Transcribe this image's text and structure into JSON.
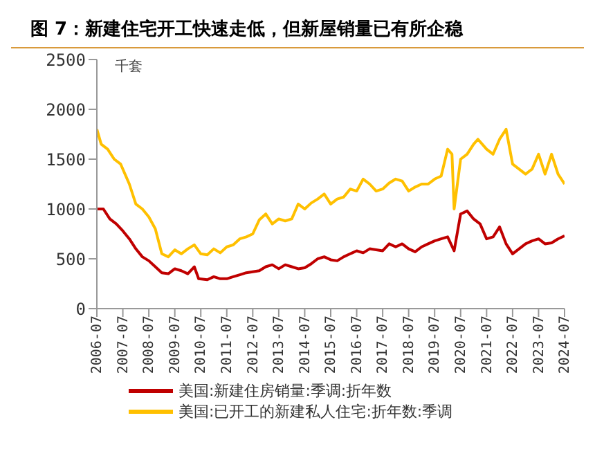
{
  "chart_data": {
    "type": "line",
    "title": "图 7：新建住宅开工快速走低，但新屋销量已有所企稳",
    "ylabel": "千套",
    "x": [
      "2006-07",
      "2006-10",
      "2007-01",
      "2007-04",
      "2007-07",
      "2007-10",
      "2008-01",
      "2008-04",
      "2008-07",
      "2008-10",
      "2009-01",
      "2009-04",
      "2009-07",
      "2009-10",
      "2010-01",
      "2010-04",
      "2010-06",
      "2010-10",
      "2011-01",
      "2011-04",
      "2011-07",
      "2011-10",
      "2012-01",
      "2012-04",
      "2012-07",
      "2012-10",
      "2013-01",
      "2013-04",
      "2013-07",
      "2013-10",
      "2014-01",
      "2014-04",
      "2014-07",
      "2014-10",
      "2015-01",
      "2015-04",
      "2015-07",
      "2015-10",
      "2016-01",
      "2016-04",
      "2016-07",
      "2016-10",
      "2017-01",
      "2017-04",
      "2017-07",
      "2017-10",
      "2018-01",
      "2018-04",
      "2018-07",
      "2018-10",
      "2019-01",
      "2019-04",
      "2019-07",
      "2019-10",
      "2020-01",
      "2020-04",
      "2020-07",
      "2020-10",
      "2021-01",
      "2021-04",
      "2021-07",
      "2021-10",
      "2022-01",
      "2022-04",
      "2022-07",
      "2022-10",
      "2023-01",
      "2023-04",
      "2023-07",
      "2023-10",
      "2024-01",
      "2024-04",
      "2024-07"
    ],
    "series": [
      {
        "name": "美国:新建住房销量:季调:折年数",
        "color": "#c00000",
        "values": [
          1000,
          1000,
          900,
          850,
          780,
          700,
          600,
          520,
          480,
          420,
          360,
          350,
          400,
          380,
          350,
          420,
          300,
          290,
          320,
          300,
          300,
          320,
          340,
          360,
          370,
          380,
          420,
          440,
          400,
          440,
          420,
          400,
          410,
          450,
          500,
          520,
          490,
          480,
          520,
          550,
          580,
          560,
          600,
          590,
          580,
          650,
          620,
          650,
          600,
          570,
          620,
          650,
          680,
          700,
          720,
          580,
          950,
          980,
          900,
          850,
          700,
          720,
          820,
          650,
          550,
          600,
          650,
          680,
          700,
          650,
          660,
          700,
          730
        ]
      },
      {
        "name": "美国:已开工的新建私人住宅:折年数:季调",
        "color": "#ffc000",
        "x": [
          "2006-07",
          "2006-09",
          "2006-12",
          "2007-03",
          "2007-06",
          "2007-10",
          "2008-01",
          "2008-04",
          "2008-07",
          "2008-10",
          "2009-01",
          "2009-04",
          "2009-07",
          "2009-10",
          "2010-01",
          "2010-04",
          "2010-07",
          "2010-10",
          "2011-01",
          "2011-04",
          "2011-07",
          "2011-10",
          "2012-01",
          "2012-04",
          "2012-07",
          "2012-10",
          "2013-01",
          "2013-04",
          "2013-07",
          "2013-10",
          "2014-01",
          "2014-04",
          "2014-07",
          "2014-10",
          "2015-01",
          "2015-04",
          "2015-07",
          "2015-10",
          "2016-01",
          "2016-04",
          "2016-07",
          "2016-10",
          "2017-01",
          "2017-04",
          "2017-07",
          "2017-10",
          "2018-01",
          "2018-04",
          "2018-07",
          "2018-10",
          "2019-01",
          "2019-04",
          "2019-07",
          "2019-10",
          "2020-01",
          "2020-03",
          "2020-04",
          "2020-07",
          "2020-10",
          "2021-01",
          "2021-03",
          "2021-07",
          "2021-10",
          "2022-01",
          "2022-04",
          "2022-07",
          "2022-10",
          "2023-01",
          "2023-04",
          "2023-07",
          "2023-10",
          "2024-01",
          "2024-04",
          "2024-07"
        ],
        "values": [
          1800,
          1650,
          1600,
          1500,
          1450,
          1250,
          1050,
          1000,
          920,
          800,
          550,
          520,
          590,
          550,
          600,
          640,
          550,
          540,
          600,
          560,
          620,
          640,
          700,
          720,
          750,
          890,
          950,
          850,
          900,
          880,
          900,
          1050,
          1000,
          1060,
          1100,
          1150,
          1050,
          1100,
          1120,
          1200,
          1180,
          1300,
          1250,
          1180,
          1200,
          1260,
          1300,
          1280,
          1180,
          1220,
          1250,
          1250,
          1300,
          1330,
          1600,
          1550,
          1000,
          1500,
          1550,
          1650,
          1700,
          1600,
          1550,
          1700,
          1800,
          1450,
          1400,
          1350,
          1400,
          1550,
          1350,
          1550,
          1350,
          1250
        ]
      }
    ],
    "xlim": [
      "2006-07",
      "2024-07"
    ],
    "xticks": [
      "2006-07",
      "2007-07",
      "2008-07",
      "2009-07",
      "2010-07",
      "2011-07",
      "2012-07",
      "2013-07",
      "2014-07",
      "2015-07",
      "2016-07",
      "2017-07",
      "2018-07",
      "2019-07",
      "2020-07",
      "2021-07",
      "2022-07",
      "2023-07",
      "2024-07"
    ],
    "ylim": [
      0,
      2500
    ],
    "yticks": [
      0,
      500,
      1000,
      1500,
      2000,
      2500
    ],
    "grid": false,
    "legend": "bottom",
    "marker": "none",
    "line_style": "solid"
  }
}
